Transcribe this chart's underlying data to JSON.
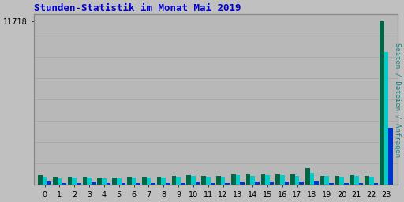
{
  "title": "Stunden-Statistik im Monat Mai 2019",
  "title_color": "#0000cc",
  "background_color": "#c0c0c0",
  "plot_bg_color": "#b8b8b8",
  "ylabel_text": "Seiten / Dateien / Anfragen",
  "ylabel_color": "#008888",
  "hours": [
    0,
    1,
    2,
    3,
    4,
    5,
    6,
    7,
    8,
    9,
    10,
    11,
    12,
    13,
    14,
    15,
    16,
    17,
    18,
    19,
    20,
    21,
    22,
    23
  ],
  "seiten_vals": [
    680,
    550,
    570,
    580,
    540,
    530,
    590,
    570,
    600,
    620,
    700,
    660,
    640,
    760,
    740,
    760,
    740,
    760,
    1200,
    660,
    630,
    700,
    640,
    11718
  ],
  "dateien_vals": [
    600,
    490,
    510,
    510,
    480,
    470,
    520,
    500,
    530,
    560,
    630,
    580,
    550,
    680,
    660,
    700,
    670,
    660,
    870,
    610,
    570,
    620,
    580,
    9500
  ],
  "anfragen_vals": [
    220,
    140,
    120,
    190,
    120,
    100,
    130,
    110,
    120,
    140,
    155,
    115,
    145,
    170,
    155,
    165,
    175,
    175,
    210,
    115,
    130,
    135,
    115,
    4100
  ],
  "color_seiten": "#006644",
  "color_dateien": "#00cccc",
  "color_anfragen": "#0033cc",
  "ylim_max": 12200,
  "ytick_val": 11718,
  "ytick_label": "11718",
  "bar_width": 0.3,
  "grid_color": "#aaaaaa",
  "grid_lines": [
    1525,
    3050,
    4575,
    6100,
    7625,
    9150,
    10675,
    12200
  ],
  "spine_color": "#888888",
  "tick_fontsize": 7,
  "title_fontsize": 9
}
